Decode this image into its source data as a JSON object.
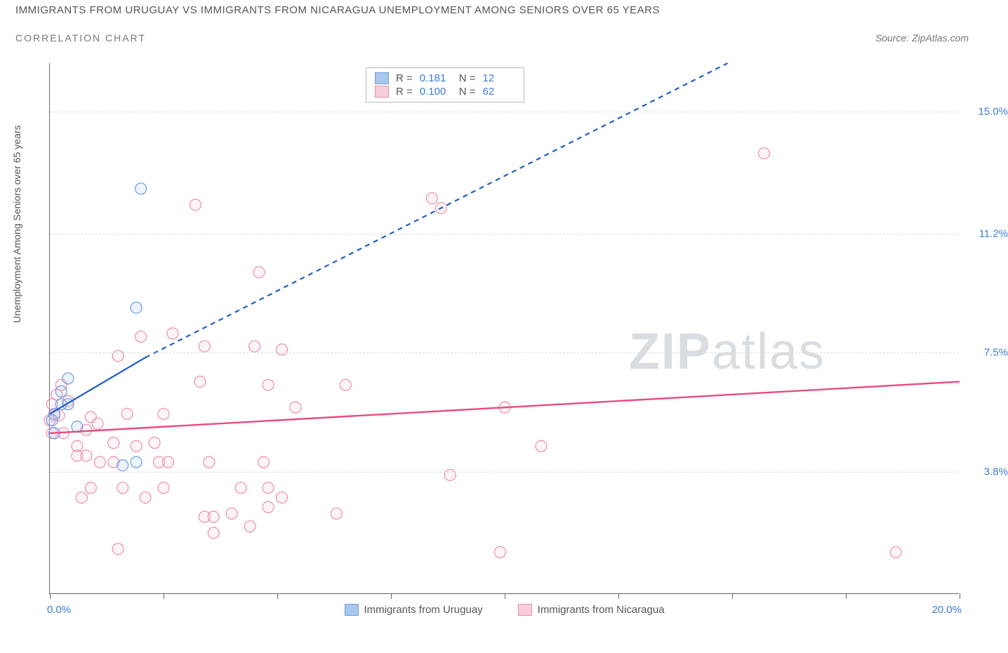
{
  "title": "IMMIGRANTS FROM URUGUAY VS IMMIGRANTS FROM NICARAGUA UNEMPLOYMENT AMONG SENIORS OVER 65 YEARS",
  "subtitle": "CORRELATION CHART",
  "source": "Source: ZipAtlas.com",
  "watermark": {
    "part1": "ZIP",
    "part2": "atlas"
  },
  "chart": {
    "type": "scatter",
    "xlim": [
      0,
      20
    ],
    "ylim": [
      0,
      16.5
    ],
    "xlabel_min": "0.0%",
    "xlabel_max": "20.0%",
    "ylabel": "Unemployment Among Seniors over 65 years",
    "x_ticks": [
      0,
      2.5,
      5,
      7.5,
      10,
      12.5,
      15,
      17.5,
      20
    ],
    "y_gridlines": [
      {
        "value": 3.8,
        "label": "3.8%"
      },
      {
        "value": 7.5,
        "label": "7.5%"
      },
      {
        "value": 11.2,
        "label": "11.2%"
      },
      {
        "value": 15.0,
        "label": "15.0%"
      }
    ],
    "background_color": "#ffffff",
    "grid_color": "#dddddd",
    "axis_color": "#666666",
    "tick_label_color": "#3b7dd8",
    "marker_radius": 8,
    "marker_stroke_width": 1.2,
    "marker_fill_opacity": 0.22,
    "series": [
      {
        "id": "uruguay",
        "name": "Immigrants from Uruguay",
        "color_stroke": "#6a9de0",
        "color_fill": "#a9c7ec",
        "R": "0.181",
        "N": "12",
        "points": [
          [
            0.1,
            5.0
          ],
          [
            0.1,
            5.6
          ],
          [
            0.25,
            6.3
          ],
          [
            0.25,
            5.9
          ],
          [
            0.4,
            5.9
          ],
          [
            0.4,
            6.7
          ],
          [
            0.6,
            5.2
          ],
          [
            2.0,
            12.6
          ],
          [
            1.9,
            8.9
          ],
          [
            1.6,
            4.0
          ],
          [
            1.9,
            4.1
          ],
          [
            0.05,
            5.4
          ]
        ],
        "trend": {
          "color": "#1f5ec7",
          "width": 2.2,
          "solid_segment": {
            "x1": 0.0,
            "y1": 5.6,
            "x2": 2.1,
            "y2": 7.35
          },
          "dashed_segment": {
            "x1": 2.1,
            "y1": 7.35,
            "x2": 14.9,
            "y2": 16.5
          },
          "dash": "7,6"
        }
      },
      {
        "id": "nicaragua",
        "name": "Immigrants from Nicaragua",
        "color_stroke": "#ea8fa9",
        "color_fill": "#f6cdd8",
        "R": "0.100",
        "N": "62",
        "points": [
          [
            0.0,
            5.4
          ],
          [
            0.05,
            5.0
          ],
          [
            0.05,
            5.9
          ],
          [
            0.1,
            5.55
          ],
          [
            0.15,
            6.2
          ],
          [
            0.2,
            5.55
          ],
          [
            0.25,
            6.5
          ],
          [
            0.6,
            4.3
          ],
          [
            0.6,
            4.6
          ],
          [
            0.7,
            3.0
          ],
          [
            0.8,
            4.3
          ],
          [
            0.8,
            5.1
          ],
          [
            0.9,
            5.5
          ],
          [
            0.9,
            3.3
          ],
          [
            1.05,
            5.3
          ],
          [
            1.1,
            4.1
          ],
          [
            1.4,
            4.7
          ],
          [
            1.4,
            4.1
          ],
          [
            1.5,
            7.4
          ],
          [
            1.5,
            1.4
          ],
          [
            1.6,
            3.3
          ],
          [
            1.7,
            5.6
          ],
          [
            1.9,
            4.6
          ],
          [
            2.0,
            8.0
          ],
          [
            2.1,
            3.0
          ],
          [
            2.3,
            4.7
          ],
          [
            2.4,
            4.1
          ],
          [
            2.5,
            5.6
          ],
          [
            2.5,
            3.3
          ],
          [
            2.6,
            4.1
          ],
          [
            2.7,
            8.1
          ],
          [
            3.3,
            6.6
          ],
          [
            3.4,
            7.7
          ],
          [
            3.5,
            4.1
          ],
          [
            3.6,
            1.9
          ],
          [
            3.4,
            2.4
          ],
          [
            3.6,
            2.4
          ],
          [
            3.2,
            12.1
          ],
          [
            4.0,
            2.5
          ],
          [
            4.2,
            3.3
          ],
          [
            4.4,
            2.1
          ],
          [
            4.5,
            7.7
          ],
          [
            4.6,
            10.0
          ],
          [
            4.7,
            4.1
          ],
          [
            4.8,
            3.3
          ],
          [
            4.8,
            6.5
          ],
          [
            4.8,
            2.7
          ],
          [
            5.1,
            3.0
          ],
          [
            5.1,
            7.6
          ],
          [
            5.4,
            5.8
          ],
          [
            6.3,
            2.5
          ],
          [
            6.5,
            6.5
          ],
          [
            8.4,
            12.3
          ],
          [
            8.6,
            12.0
          ],
          [
            8.8,
            3.7
          ],
          [
            9.9,
            1.3
          ],
          [
            10.0,
            5.8
          ],
          [
            10.8,
            4.6
          ],
          [
            15.7,
            13.7
          ],
          [
            18.6,
            1.3
          ],
          [
            0.3,
            5.0
          ],
          [
            0.4,
            6.0
          ]
        ],
        "trend": {
          "color": "#e74b83",
          "width": 2.4,
          "solid_segment": {
            "x1": 0.0,
            "y1": 5.0,
            "x2": 20.0,
            "y2": 6.6
          }
        }
      }
    ]
  }
}
